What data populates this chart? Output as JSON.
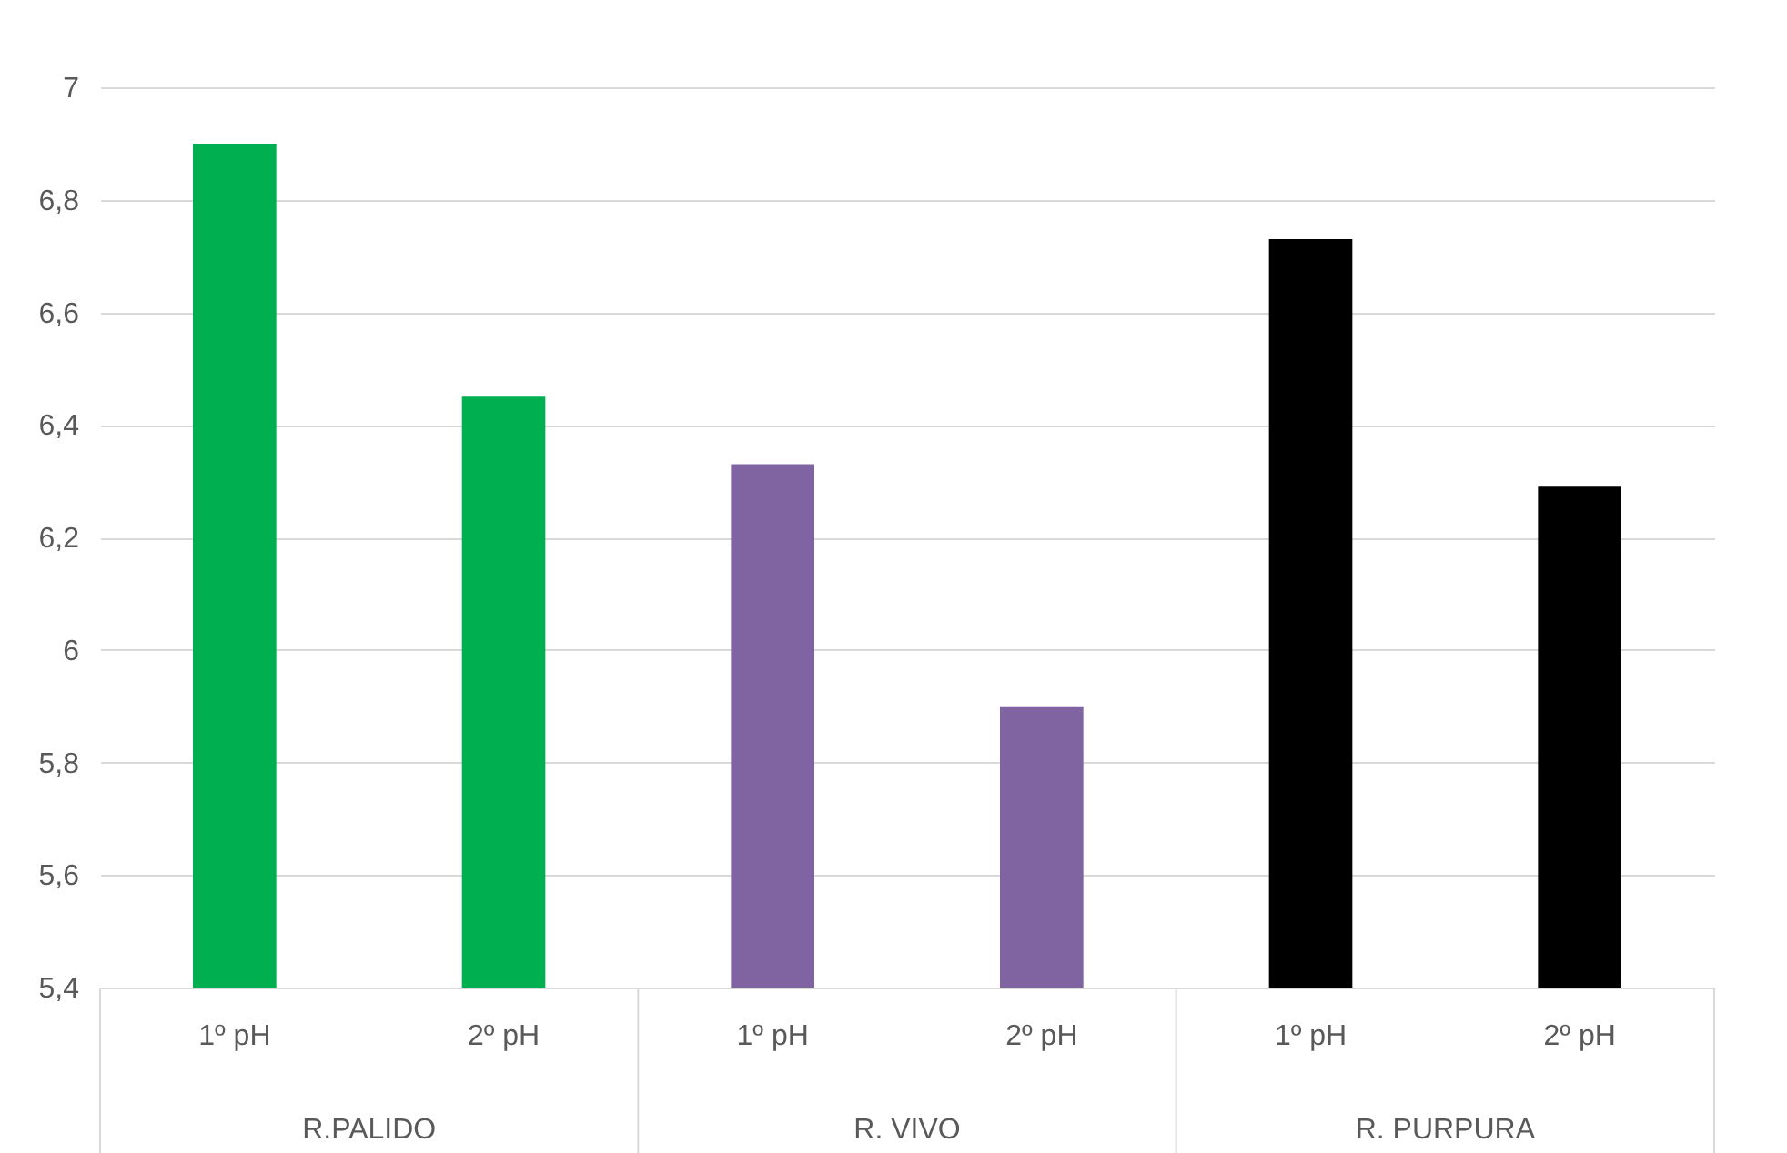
{
  "chart_data": {
    "type": "bar",
    "categories": [
      "1º pH",
      "2º pH",
      "1º pH",
      "2º pH",
      "1º pH",
      "2º pH"
    ],
    "values": [
      6.9,
      6.45,
      6.33,
      5.9,
      6.73,
      6.29
    ],
    "colors": [
      "#00b050",
      "#00b050",
      "#8064a2",
      "#8064a2",
      "#000000",
      "#000000"
    ],
    "ylim": [
      5.4,
      7
    ],
    "yticks": [
      {
        "value": 5.4,
        "label": "5,4"
      },
      {
        "value": 5.6,
        "label": "5,6"
      },
      {
        "value": 5.8,
        "label": "5,8"
      },
      6,
      {
        "value": 6.2,
        "label": "6,2"
      },
      {
        "value": 6.4,
        "label": "6,4"
      },
      {
        "value": 6.6,
        "label": "6,6"
      },
      {
        "value": 6.8,
        "label": "6,8"
      },
      7
    ],
    "grid": "y",
    "annotations": [
      "R.PALIDO",
      "R. VIVO",
      "R. PURPURA"
    ]
  }
}
